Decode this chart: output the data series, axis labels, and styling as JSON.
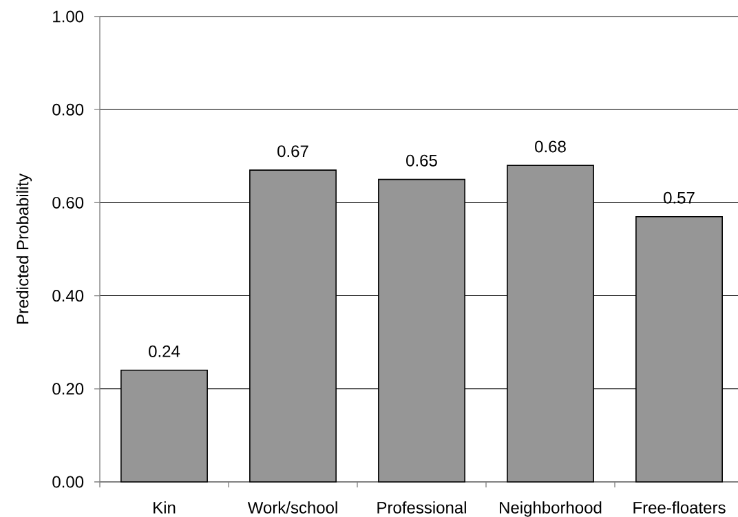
{
  "chart_data": {
    "type": "bar",
    "ylabel": "Predicted Probability",
    "categories": [
      "Kin",
      "Work/school",
      "Professional",
      "Neighborhood",
      "Free-floaters"
    ],
    "values": [
      0.24,
      0.67,
      0.65,
      0.68,
      0.57
    ],
    "color": "#969696",
    "data_labels": true,
    "ylim": [
      0,
      1
    ],
    "yticks": [
      {
        "value": 0,
        "label": "0.00"
      },
      {
        "value": 0.2,
        "label": "0.20"
      },
      {
        "value": 0.4,
        "label": "0.40"
      },
      {
        "value": 0.6,
        "label": "0.60"
      },
      {
        "value": 0.8,
        "label": "0.80"
      },
      {
        "value": 1,
        "label": "1.00"
      }
    ],
    "grid": "y"
  }
}
